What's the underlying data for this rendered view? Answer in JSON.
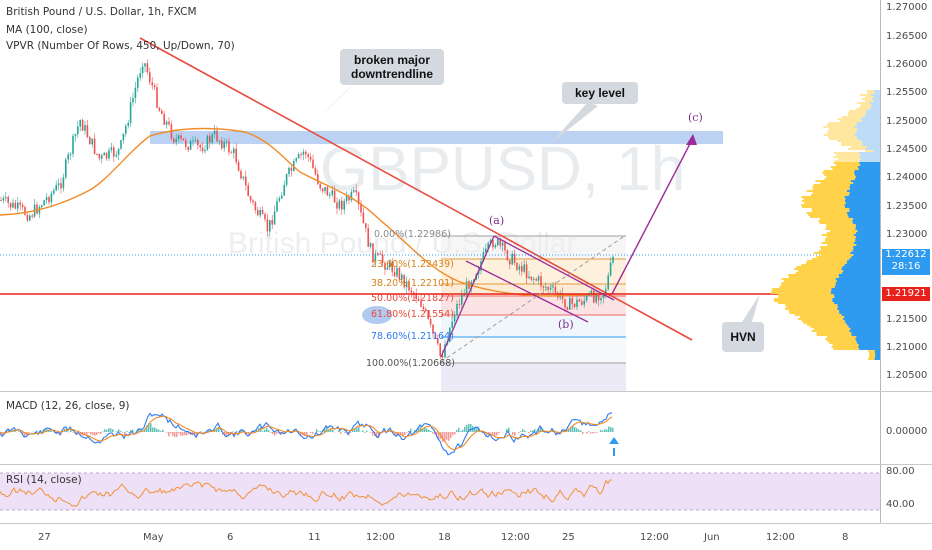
{
  "header": {
    "symbol_line": "British Pound / U.S. Dollar, 1h, FXCM",
    "ma_line": "MA (100, close)",
    "vpvr_line": "VPVR (Number Of Rows, 450, Up/Down, 70)"
  },
  "watermark": {
    "symbol": "GBPUSD, 1h",
    "name": "British Pound / U.S. Dollar"
  },
  "callouts": {
    "trendline": "broken major downtrendline",
    "key_level": "key level",
    "hvn": "HVN"
  },
  "waves": {
    "a": "(a)",
    "b": "(b)",
    "c": "(c)"
  },
  "fib_levels": [
    {
      "label": "0.00%(1.22986)",
      "ratio": "0.00%",
      "price": 1.22986
    },
    {
      "label": "23.60%(1.22439)",
      "ratio": "23.60%",
      "price": 1.22439
    },
    {
      "label": "38.20%(1.22101)",
      "ratio": "38.20%",
      "price": 1.22101
    },
    {
      "label": "50.00%(1.21827)",
      "ratio": "50.00%",
      "price": 1.21827
    },
    {
      "label": "61.80%(1.21554)",
      "ratio": "61.80%",
      "price": 1.21554
    },
    {
      "label": "78.60%(1.21164)",
      "ratio": "78.60%",
      "price": 1.21164
    },
    {
      "label": "100.00%(1.20668)",
      "ratio": "100.00%",
      "price": 1.20668
    }
  ],
  "price_axis": {
    "ticks": [
      "1.27000",
      "1.26500",
      "1.26000",
      "1.25500",
      "1.25000",
      "1.24500",
      "1.24000",
      "1.23500",
      "1.23000",
      "1.22500",
      "1.22000",
      "1.21500",
      "1.21000",
      "1.20500"
    ],
    "current_price": "1.22612",
    "countdown": "28:16",
    "hvn_price": "1.21921"
  },
  "macd": {
    "label": "MACD (12, 26, close, 9)",
    "ticks": [
      "0.00000"
    ]
  },
  "rsi": {
    "label": "RSI (14, close)",
    "ticks": [
      "80.00",
      "40.00"
    ]
  },
  "time_axis": {
    "ticks": [
      "27",
      "May",
      "6",
      "11",
      "12:00",
      "18",
      "12:00",
      "25",
      "12:00",
      "Jun",
      "12:00",
      "8"
    ]
  },
  "colors": {
    "up_candle": "#26a69a",
    "down_candle": "#ef5350",
    "ma": "#f28c28",
    "trendline": "#e84a3f",
    "hvn_line": "#e8221b",
    "key_zone": "#8fb4ea",
    "projection": "#9b2d9b",
    "volume_up": "#ffd24a",
    "volume_down": "#2f9bf0",
    "rsi_band": "#ede0f7",
    "rsi_line": "#f2923a",
    "macd_line": "#2f7bf0"
  }
}
